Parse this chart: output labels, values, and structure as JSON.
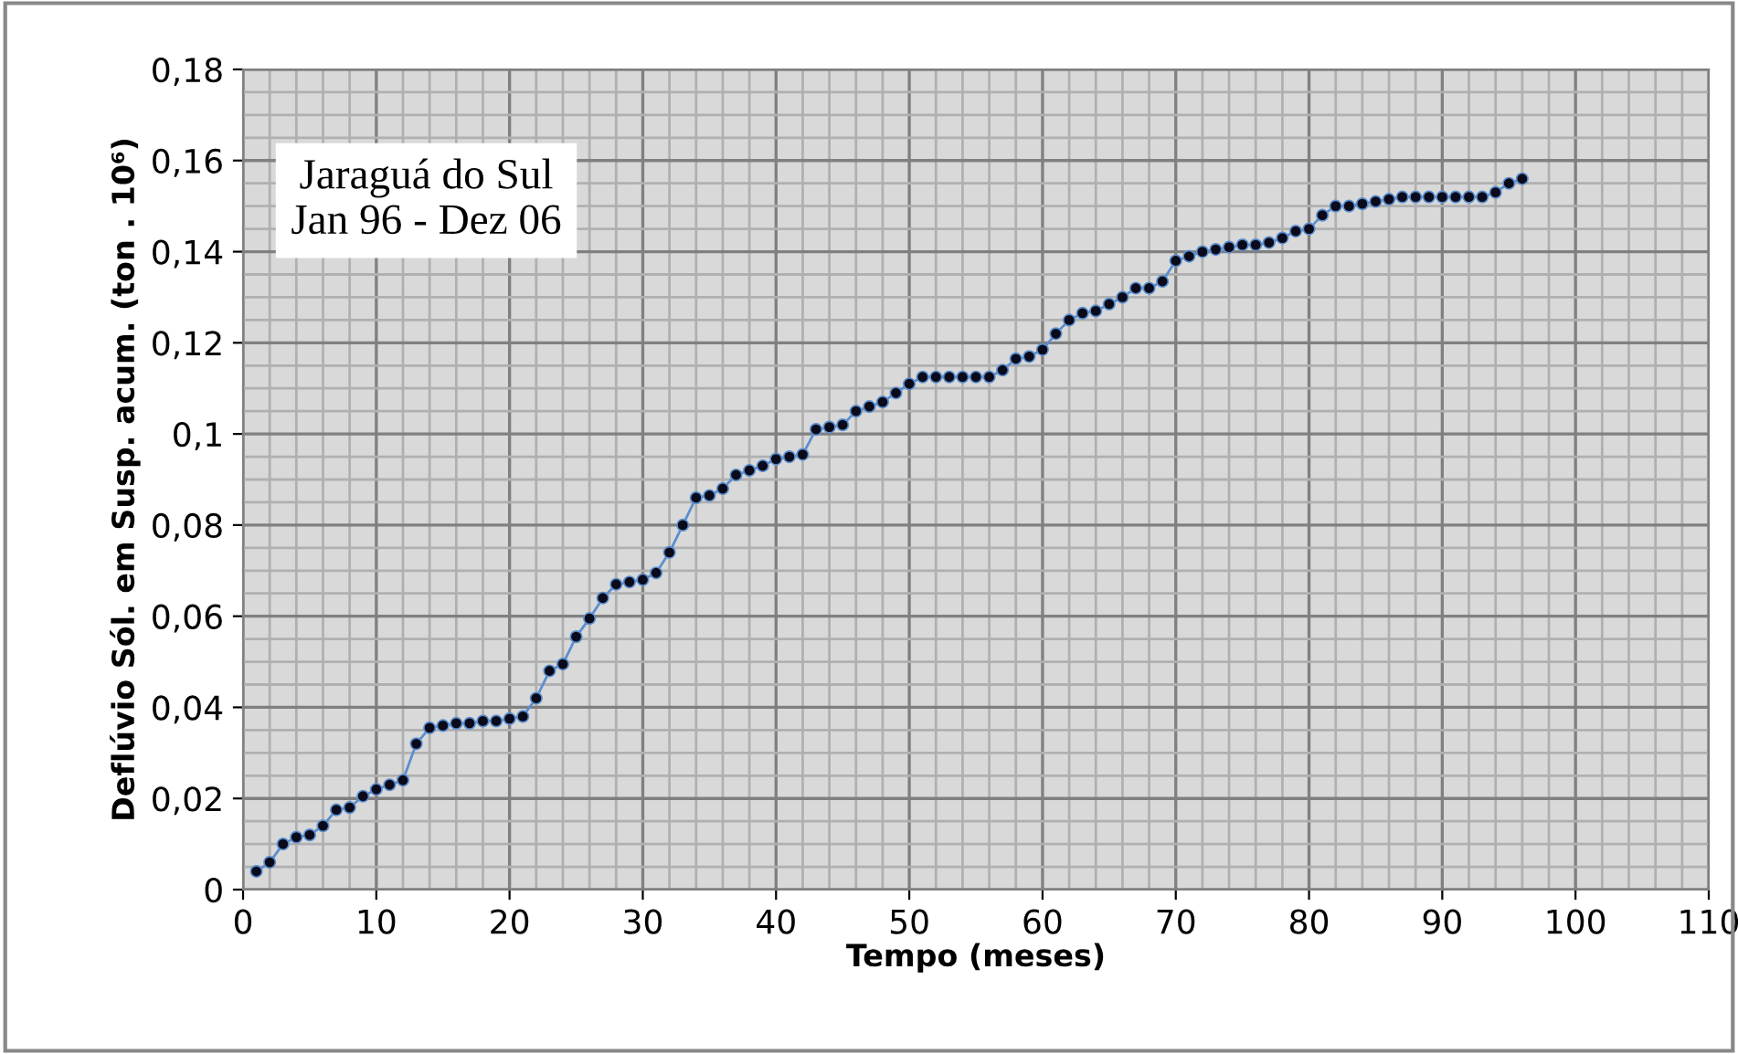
{
  "chart_data": {
    "type": "line",
    "title": "Jaraguá do Sul\nJan 96 - Dez 06",
    "xlabel": "Tempo (meses)",
    "ylabel": "Deflúvio Sól. em Susp. acum. (ton . 10⁶)",
    "x": [
      1,
      2,
      3,
      4,
      5,
      6,
      7,
      8,
      9,
      10,
      11,
      12,
      13,
      14,
      15,
      16,
      17,
      18,
      19,
      20,
      21,
      22,
      23,
      24,
      25,
      26,
      27,
      28,
      29,
      30,
      31,
      32,
      33,
      34,
      35,
      36,
      37,
      38,
      39,
      40,
      41,
      42,
      43,
      44,
      45,
      46,
      47,
      48,
      49,
      50,
      51,
      52,
      53,
      54,
      55,
      56,
      57,
      58,
      59,
      60,
      61,
      62,
      63,
      64,
      65,
      66,
      67,
      68,
      69,
      70,
      71,
      72,
      73,
      74,
      75,
      76,
      77,
      78,
      79,
      80,
      81,
      82,
      83,
      84,
      85,
      86,
      87,
      88,
      89,
      90,
      91,
      92,
      93,
      94,
      95,
      96
    ],
    "series": [
      {
        "color": "#5b8fd0",
        "values": [
          0.004,
          0.006,
          0.01,
          0.0115,
          0.012,
          0.014,
          0.0175,
          0.018,
          0.0205,
          0.022,
          0.023,
          0.024,
          0.032,
          0.0355,
          0.036,
          0.0365,
          0.0365,
          0.037,
          0.037,
          0.0375,
          0.038,
          0.042,
          0.048,
          0.0495,
          0.0555,
          0.0595,
          0.064,
          0.067,
          0.0675,
          0.068,
          0.0695,
          0.074,
          0.08,
          0.086,
          0.0865,
          0.088,
          0.091,
          0.092,
          0.093,
          0.0945,
          0.095,
          0.0955,
          0.101,
          0.1015,
          0.102,
          0.105,
          0.106,
          0.107,
          0.109,
          0.111,
          0.1125,
          0.1125,
          0.1125,
          0.1125,
          0.1125,
          0.1125,
          0.114,
          0.1165,
          0.117,
          0.1185,
          0.122,
          0.125,
          0.1265,
          0.127,
          0.1285,
          0.13,
          0.132,
          0.132,
          0.1335,
          0.138,
          0.139,
          0.14,
          0.1405,
          0.141,
          0.1415,
          0.1415,
          0.142,
          0.143,
          0.1445,
          0.145,
          0.148,
          0.15,
          0.15,
          0.1505,
          0.151,
          0.1515,
          0.152,
          0.152,
          0.152,
          0.152,
          0.152,
          0.152,
          0.152,
          0.153,
          0.155,
          0.156
        ]
      }
    ],
    "xlim": [
      0,
      110
    ],
    "xticks": [
      0,
      10,
      20,
      30,
      40,
      50,
      60,
      70,
      80,
      90,
      100,
      110
    ],
    "ylim": [
      0,
      0.18
    ],
    "yticks": [
      0,
      {
        "value": 0.02,
        "label": "0,02"
      },
      {
        "value": 0.04,
        "label": "0,04"
      },
      {
        "value": 0.06,
        "label": "0,06"
      },
      {
        "value": 0.08,
        "label": "0,08"
      },
      {
        "value": 0.1,
        "label": "0,1"
      },
      {
        "value": 0.12,
        "label": "0,12"
      },
      {
        "value": 0.14,
        "label": "0,14"
      },
      {
        "value": 0.16,
        "label": "0,16"
      },
      {
        "value": 0.18,
        "label": "0,18"
      }
    ],
    "grid": true,
    "marker": "circle",
    "line_style": "solid",
    "legend": false
  }
}
